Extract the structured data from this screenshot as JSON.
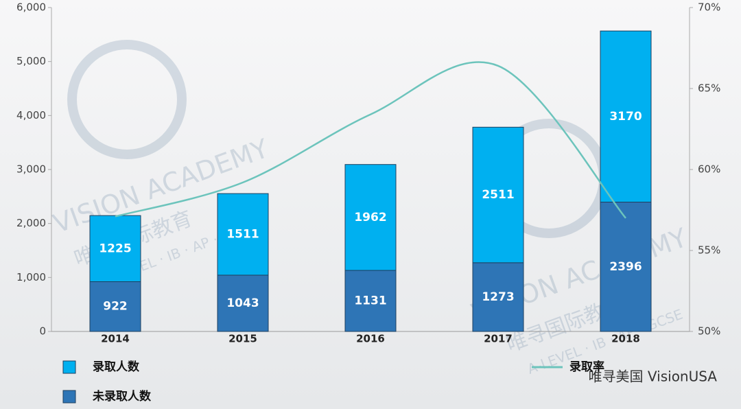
{
  "chart_data": {
    "type": "stacked-bar-line",
    "categories": [
      "2014",
      "2015",
      "2016",
      "2017",
      "2018"
    ],
    "series": [
      {
        "name": "未录取人数",
        "color": "#2e75b6",
        "values": [
          922,
          1043,
          1131,
          1273,
          2396
        ]
      },
      {
        "name": "录取人数",
        "color": "#00b0f0",
        "values": [
          1225,
          1511,
          1962,
          2511,
          3170
        ]
      },
      {
        "name": "录取率",
        "color": "#6cc4bc",
        "axis": "y2",
        "values": [
          57.1,
          59.2,
          63.4,
          66.4,
          57.0
        ]
      }
    ],
    "ylim": [
      0,
      6000
    ],
    "yticks": [
      0,
      {
        "value": 1000,
        "label": "1,000"
      },
      {
        "value": 2000,
        "label": "2,000"
      },
      {
        "value": 3000,
        "label": "3,000"
      },
      {
        "value": 4000,
        "label": "4,000"
      },
      {
        "value": 5000,
        "label": "5,000"
      },
      {
        "value": 6000,
        "label": "6,000"
      }
    ],
    "y2lim": [
      50,
      70
    ],
    "y2ticks": [
      {
        "value": 50,
        "label": "50%"
      },
      {
        "value": 55,
        "label": "55%"
      },
      {
        "value": 60,
        "label": "60%"
      },
      {
        "value": 65,
        "label": "65%"
      },
      {
        "value": 70,
        "label": "70%"
      }
    ]
  },
  "watermark": {
    "name": "VISION ACADEMY",
    "chinese": "唯寻国际教育",
    "subjects": "A-LEVEL · IB · AP · GCSE"
  },
  "source": "唯寻美国 VisionUSA"
}
